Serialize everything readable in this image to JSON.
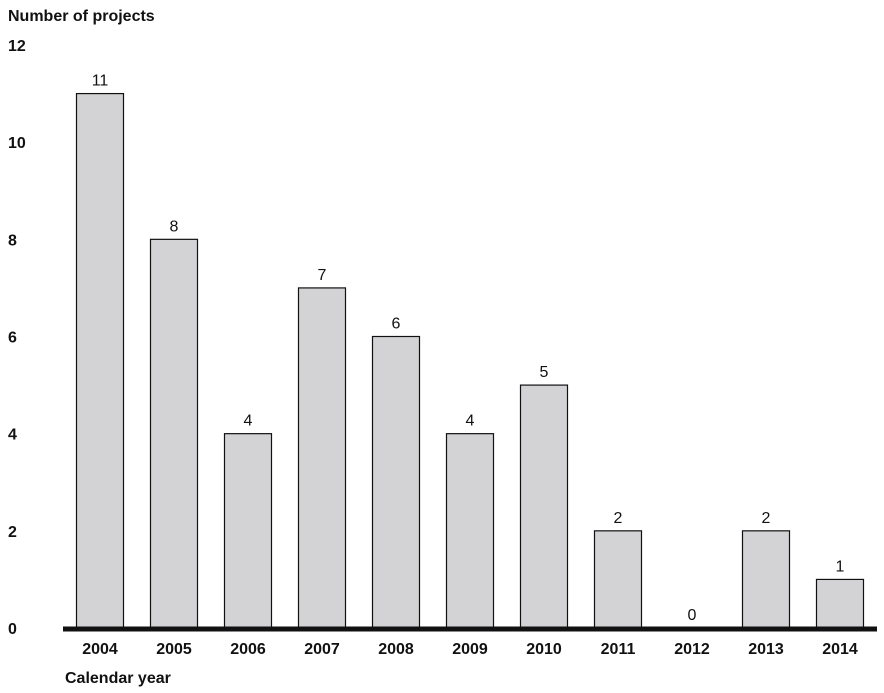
{
  "chart_data": {
    "type": "bar",
    "title": "",
    "ylabel": "Number of projects",
    "xlabel": "Calendar year",
    "categories": [
      "2004",
      "2005",
      "2006",
      "2007",
      "2008",
      "2009",
      "2010",
      "2011",
      "2012",
      "2013",
      "2014"
    ],
    "values": [
      11,
      8,
      4,
      7,
      6,
      4,
      5,
      2,
      0,
      2,
      1
    ],
    "ylim": [
      0,
      12
    ],
    "yticks": [
      "0",
      "2",
      "4",
      "6",
      "8",
      "10",
      "12"
    ],
    "grid": false,
    "legend": "none",
    "data_labels": true,
    "colors": {
      "bar_fill": "#d3d3d6",
      "bar_stroke": "#111111",
      "baseline": "#111111",
      "text": "#111111"
    }
  }
}
